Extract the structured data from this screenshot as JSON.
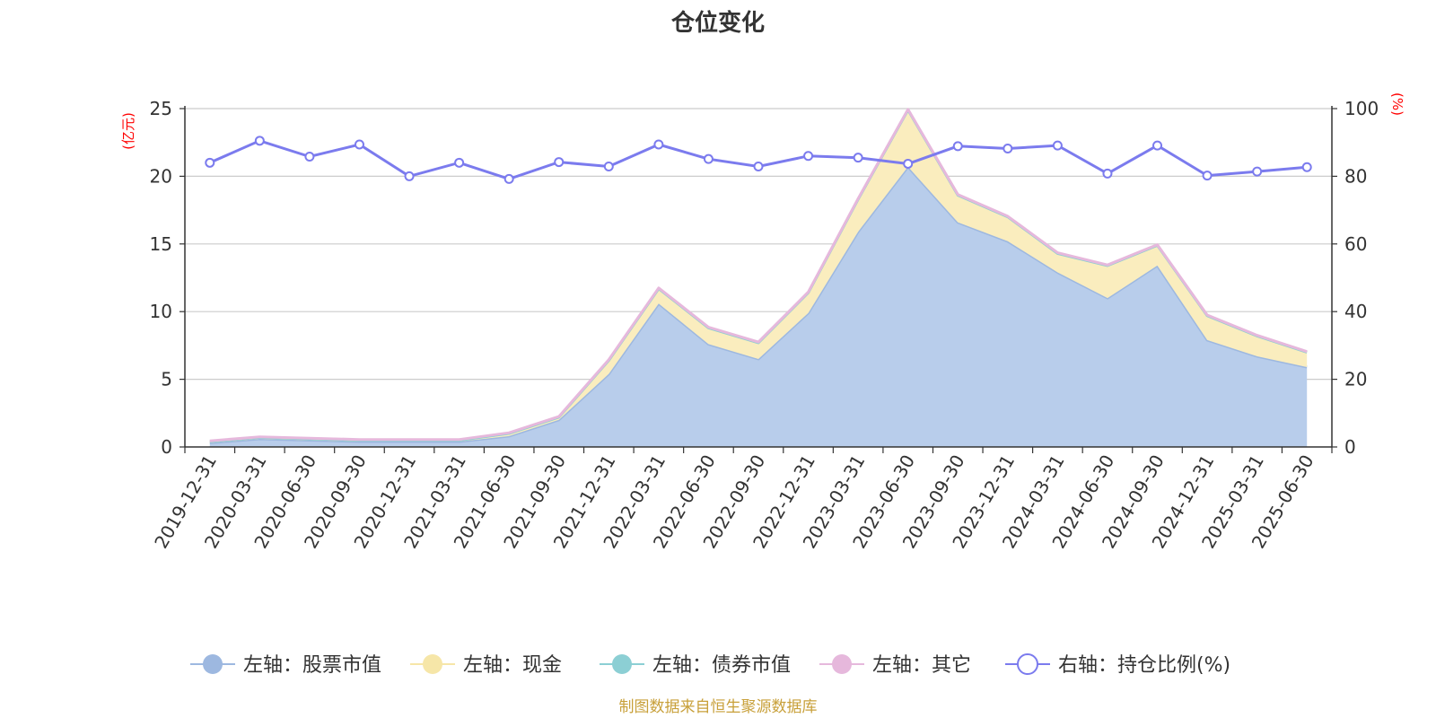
{
  "chart_data": {
    "type": "area",
    "title": "仓位变化",
    "source": "制图数据来自恒生聚源数据库",
    "left_axis": {
      "unit": "(亿元)",
      "ylim": [
        0,
        25
      ],
      "ticks": [
        "0",
        "5",
        "10",
        "15",
        "20",
        "25"
      ]
    },
    "right_axis": {
      "unit": "(%)",
      "ylim": [
        0,
        100
      ],
      "ticks": [
        "0",
        "20",
        "40",
        "60",
        "80",
        "100"
      ]
    },
    "categories": [
      "2019-12-31",
      "2020-03-31",
      "2020-06-30",
      "2020-09-30",
      "2020-12-31",
      "2021-03-31",
      "2021-06-30",
      "2021-09-30",
      "2021-12-31",
      "2022-03-31",
      "2022-06-30",
      "2022-09-30",
      "2022-12-31",
      "2023-03-31",
      "2023-06-30",
      "2023-09-30",
      "2023-12-31",
      "2024-03-31",
      "2024-06-30",
      "2024-09-30",
      "2024-12-31",
      "2025-03-31",
      "2025-06-30"
    ],
    "series": [
      {
        "name": "左轴：股票市值",
        "axis": "left",
        "color": "#9db8e0",
        "fill": "#b8cdeb",
        "values": [
          0.3,
          0.6,
          0.5,
          0.4,
          0.4,
          0.4,
          0.8,
          2.0,
          5.4,
          10.6,
          7.6,
          6.5,
          9.9,
          15.9,
          20.7,
          16.6,
          15.2,
          12.9,
          11.0,
          13.4,
          7.9,
          6.7,
          5.9
        ]
      },
      {
        "name": "左轴：现金",
        "axis": "left",
        "color": "#f6e6a8",
        "fill": "#faedbe",
        "values": [
          0.1,
          0.1,
          0.1,
          0.1,
          0.1,
          0.1,
          0.2,
          0.2,
          1.0,
          1.1,
          1.2,
          1.2,
          1.5,
          2.4,
          4.2,
          2.0,
          1.8,
          1.4,
          2.4,
          1.5,
          1.8,
          1.5,
          1.1
        ]
      },
      {
        "name": "左轴：债券市值",
        "axis": "left",
        "color": "#8ccfd4",
        "fill": "#a9dce0",
        "values": [
          0,
          0,
          0,
          0,
          0,
          0,
          0,
          0,
          0,
          0,
          0,
          0,
          0,
          0,
          0,
          0,
          0,
          0,
          0,
          0,
          0,
          0,
          0
        ]
      },
      {
        "name": "左轴：其它",
        "axis": "left",
        "color": "#e6b8dc",
        "fill": "#eec9e5",
        "values": [
          0.05,
          0.05,
          0.05,
          0.05,
          0.05,
          0.05,
          0.05,
          0.05,
          0.05,
          0.05,
          0.05,
          0.05,
          0.05,
          0.05,
          0.05,
          0.05,
          0.05,
          0.05,
          0.05,
          0.05,
          0.05,
          0.05,
          0.05
        ]
      },
      {
        "name": "右轴：持仓比例(%)",
        "axis": "right",
        "color": "#7b7bee",
        "type": "line",
        "values": [
          84.0,
          90.5,
          85.8,
          89.4,
          80.0,
          84.0,
          79.2,
          84.2,
          82.9,
          89.4,
          85.1,
          82.9,
          86.0,
          85.5,
          83.7,
          88.9,
          88.2,
          89.1,
          80.8,
          89.1,
          80.2,
          81.4,
          82.7
        ]
      }
    ],
    "legend": "bottom-center",
    "grid": true
  }
}
